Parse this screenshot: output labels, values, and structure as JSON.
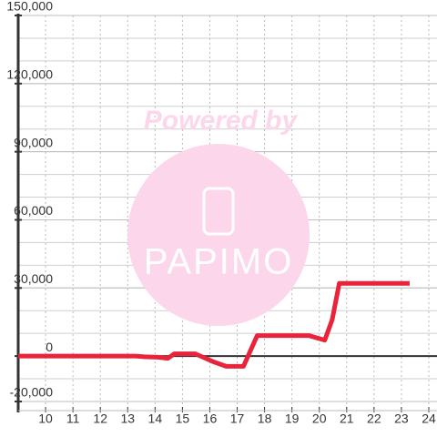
{
  "chart_data": {
    "type": "line",
    "watermark": {
      "line1": "Powered by",
      "line2": "PAPIMO"
    },
    "x": [
      9,
      13.3,
      13.6,
      14.1,
      14.47,
      14.7,
      15.47,
      16.13,
      16.6,
      17.23,
      17.73,
      19.63,
      20.2,
      20.47,
      20.73,
      23.3
    ],
    "series": [
      {
        "color": "#e8233a",
        "values": [
          0,
          0,
          -300,
          -500,
          -1000,
          1000,
          1000,
          -2500,
          -4500,
          -4500,
          9000,
          9000,
          7000,
          16000,
          32000,
          32000
        ]
      }
    ],
    "xlim": [
      9,
      24.3
    ],
    "xticks": [
      10,
      11,
      12,
      13,
      14,
      15,
      16,
      17,
      18,
      19,
      20,
      21,
      22,
      23,
      24
    ],
    "ylim": [
      -20000,
      150000
    ],
    "yticks": [
      {
        "value": -20000,
        "label": "-20,000"
      },
      {
        "value": 0,
        "label": "0"
      },
      {
        "value": 30000,
        "label": "30,000"
      },
      {
        "value": 60000,
        "label": "60,000"
      },
      {
        "value": 90000,
        "label": "90,000"
      },
      {
        "value": 120000,
        "label": "120,000"
      },
      {
        "value": 150000,
        "label": "150,000"
      }
    ],
    "minor_grid_step": 10000,
    "grid": true
  }
}
